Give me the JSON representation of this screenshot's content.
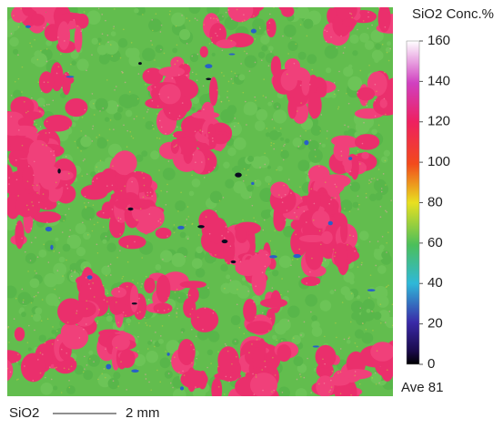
{
  "map": {
    "colorbar": {
      "title": "SiO2  Conc.%",
      "range": [
        0,
        160
      ],
      "ticks": [
        0,
        20,
        40,
        60,
        80,
        100,
        120,
        140,
        160
      ]
    },
    "average": "Ave 81",
    "scale_bar": {
      "element": "SiO2",
      "length": "2 mm"
    }
  }
}
